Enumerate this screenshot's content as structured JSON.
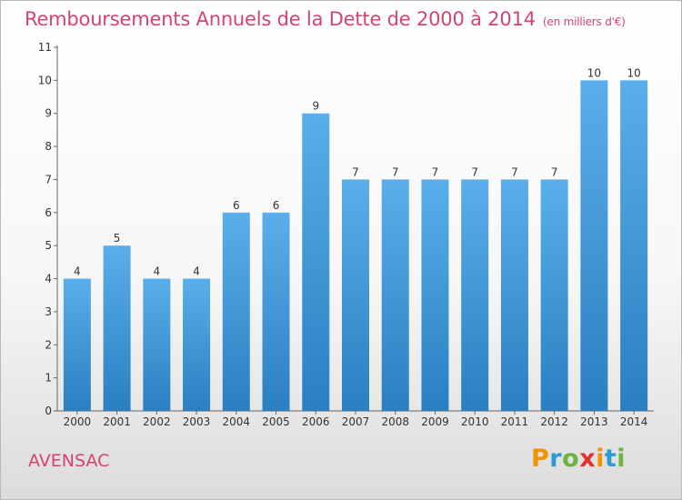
{
  "header": {
    "title": "Remboursements Annuels de la Dette de 2000 à 2014",
    "unit": "(en milliers d'€)"
  },
  "footer": {
    "commune": "AVENSAC",
    "logo_text": "Proxiti"
  },
  "colors": {
    "accent": "#d6436e",
    "bar_top": "#5aaeea",
    "bar_bottom": "#2a7fc1"
  },
  "chart_data": {
    "type": "bar",
    "title": "Remboursements Annuels de la Dette de 2000 à 2014",
    "subtitle": "(en milliers d'€)",
    "categories": [
      "2000",
      "2001",
      "2002",
      "2003",
      "2004",
      "2005",
      "2006",
      "2007",
      "2008",
      "2009",
      "2010",
      "2011",
      "2012",
      "2013",
      "2014"
    ],
    "values": [
      4,
      5,
      4,
      4,
      6,
      6,
      9,
      7,
      7,
      7,
      7,
      7,
      7,
      10,
      10
    ],
    "data_labels": [
      "4",
      "5",
      "4",
      "4",
      "6",
      "6",
      "9",
      "7",
      "7",
      "7",
      "7",
      "7",
      "7",
      "10",
      "10"
    ],
    "ylim": [
      0,
      11
    ],
    "y_ticks": [
      "0",
      "1",
      "2",
      "3",
      "4",
      "5",
      "6",
      "7",
      "8",
      "9",
      "10",
      "11"
    ],
    "grid": false,
    "legend": "none"
  }
}
